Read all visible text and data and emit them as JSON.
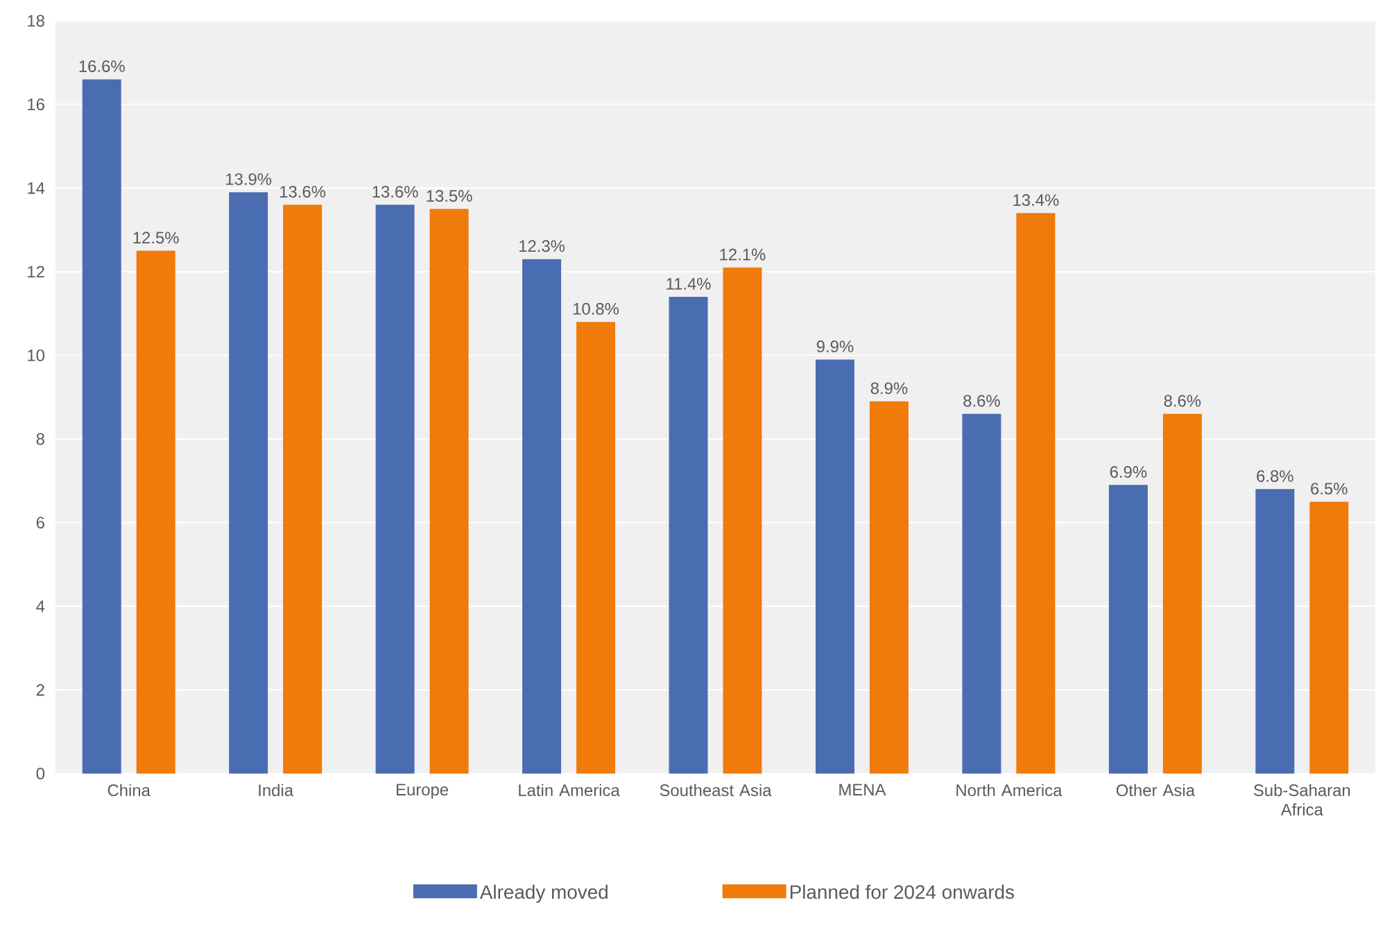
{
  "chart_data": {
    "type": "bar",
    "categories": [
      "China",
      "India",
      "Europe",
      "Latin America",
      "Southeast Asia",
      "MENA",
      "North America",
      "Other Asia",
      "Sub-Saharan Africa"
    ],
    "series": [
      {
        "name": "Already moved",
        "color": "#4a6cb0",
        "values": [
          16.6,
          13.9,
          13.6,
          12.3,
          11.4,
          9.9,
          8.6,
          6.9,
          6.8
        ],
        "value_labels": [
          "16.6%",
          "13.9%",
          "13.6%",
          "12.3%",
          "11.4%",
          "9.9%",
          "8.6%",
          "6.9%",
          "6.8%"
        ]
      },
      {
        "name": "Planned for 2024 onwards",
        "color": "#f07a0a",
        "values": [
          12.5,
          13.6,
          13.5,
          10.8,
          12.1,
          8.9,
          13.4,
          8.6,
          6.5
        ],
        "value_labels": [
          "12.5%",
          "13.6%",
          "13.5%",
          "10.8%",
          "12.1%",
          "8.9%",
          "13.4%",
          "8.6%",
          "6.5%"
        ]
      }
    ],
    "ylim": [
      0,
      18
    ],
    "yticks": [
      0,
      2,
      4,
      6,
      8,
      10,
      12,
      14,
      16,
      18
    ],
    "grid": "y",
    "legend": "bottom"
  }
}
